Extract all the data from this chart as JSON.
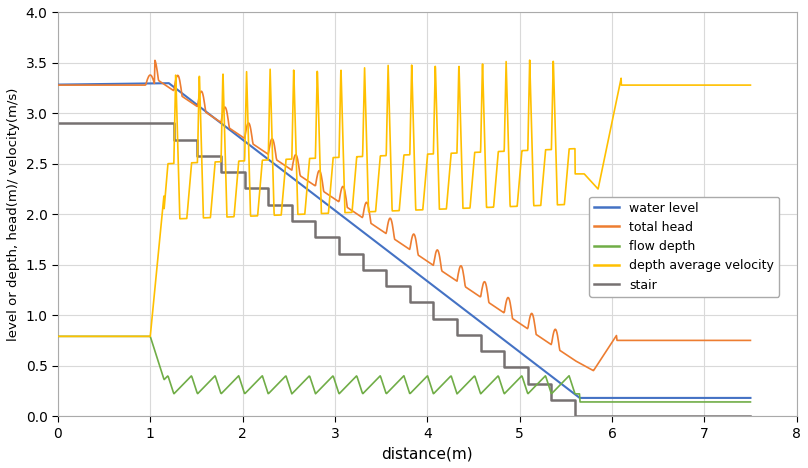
{
  "title": "",
  "xlabel": "distance(m)",
  "ylabel": "level or depth, head(m)/ velocity(m/s)",
  "xlim": [
    0.0,
    8.0
  ],
  "ylim": [
    0.0,
    4.0
  ],
  "xticks": [
    0.0,
    1.0,
    2.0,
    3.0,
    4.0,
    5.0,
    6.0,
    7.0,
    8.0
  ],
  "yticks": [
    0.0,
    0.5,
    1.0,
    1.5,
    2.0,
    2.5,
    3.0,
    3.5,
    4.0
  ],
  "colors": {
    "water_level": "#4472C4",
    "total_head": "#ED7D31",
    "flow_depth": "#70AD47",
    "velocity": "#FFC000",
    "stair": "#767171"
  },
  "legend_labels": [
    "water level",
    "total head",
    "flow depth",
    "depth average velocity",
    "stair"
  ],
  "background": "#FFFFFF",
  "grid_color": "#D9D9D9",
  "n_steps": 18,
  "stair_start_x": 1.0,
  "stair_end_x": 5.6,
  "stair_top_y": 2.9,
  "stair_bottom_y": 0.0,
  "step_tread": 0.26,
  "step_riser": 0.16
}
